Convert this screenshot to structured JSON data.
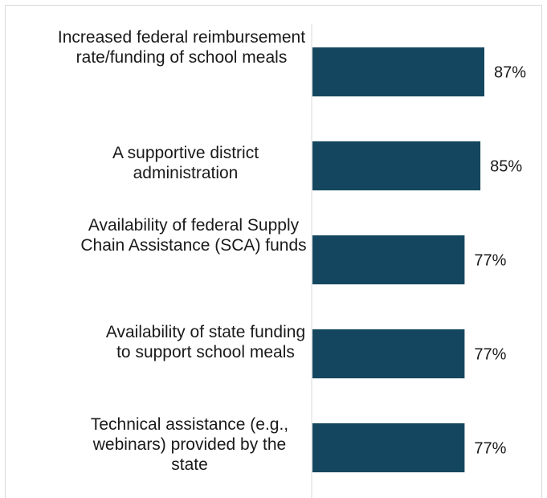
{
  "chart_data": {
    "type": "bar",
    "orientation": "horizontal",
    "categories": [
      "Increased federal reimbursement rate/funding of school meals",
      "A supportive district administration",
      "Availability of federal Supply Chain Assistance (SCA) funds",
      "Availability of state funding to support school meals",
      "Technical assistance (e.g., webinars) provided by the state"
    ],
    "values": [
      87,
      85,
      77,
      77,
      77
    ],
    "value_labels": [
      "87%",
      "85%",
      "77%",
      "77%",
      "77%"
    ],
    "xlim": [
      0,
      100
    ],
    "bar_color": "#14475f",
    "grid": false,
    "legend": "none"
  }
}
